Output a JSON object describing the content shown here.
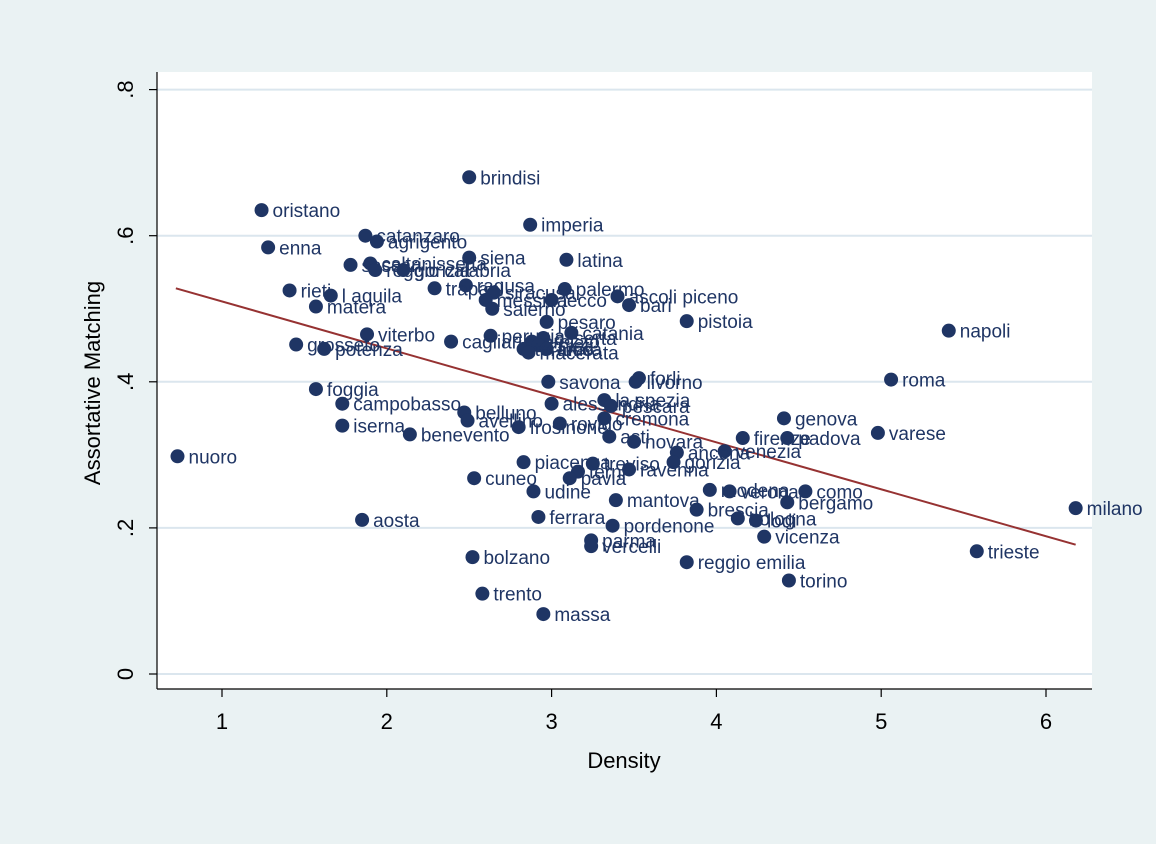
{
  "chart_data": {
    "type": "scatter",
    "title": "",
    "xlabel": "Density",
    "ylabel": "Assortative Matching",
    "xlim": [
      0.6,
      6.3
    ],
    "ylim": [
      -0.02,
      0.85
    ],
    "xticks": [
      1,
      2,
      3,
      4,
      5,
      6
    ],
    "xtick_labels": [
      "1",
      "2",
      "3",
      "4",
      "5",
      "6"
    ],
    "yticks": [
      0,
      0.2,
      0.4,
      0.6,
      0.8
    ],
    "ytick_labels": [
      "0",
      ".2",
      ".4",
      ".6",
      ".8"
    ],
    "grid": "horizontal",
    "colors": {
      "points": "#1f3564",
      "fit_line": "#963232",
      "background": "#eaf2f3",
      "plot_area": "#ffffff",
      "grid": "#dbe6ee"
    },
    "fit_line": {
      "x": [
        0.72,
        6.18
      ],
      "y": [
        0.528,
        0.177
      ]
    },
    "points": [
      {
        "label": "brindisi",
        "x": 2.5,
        "y": 0.68
      },
      {
        "label": "oristano",
        "x": 1.24,
        "y": 0.635
      },
      {
        "label": "imperia",
        "x": 2.87,
        "y": 0.615
      },
      {
        "label": "catanzaro",
        "x": 1.87,
        "y": 0.6
      },
      {
        "label": "agrigento",
        "x": 1.94,
        "y": 0.592
      },
      {
        "label": "enna",
        "x": 1.28,
        "y": 0.584
      },
      {
        "label": "latina",
        "x": 3.09,
        "y": 0.567
      },
      {
        "label": "caltanissetta",
        "x": 1.9,
        "y": 0.562
      },
      {
        "label": "siena",
        "x": 2.5,
        "y": 0.57
      },
      {
        "label": "sassari",
        "x": 1.78,
        "y": 0.56
      },
      {
        "label": "reggio calabria",
        "x": 1.93,
        "y": 0.553
      },
      {
        "label": "gorizia",
        "x": 2.1,
        "y": 0.553
      },
      {
        "label": "ragusa",
        "x": 2.48,
        "y": 0.532
      },
      {
        "label": "trapani",
        "x": 2.29,
        "y": 0.528
      },
      {
        "label": "rieti",
        "x": 1.41,
        "y": 0.525
      },
      {
        "label": "l aquila",
        "x": 1.66,
        "y": 0.518
      },
      {
        "label": "palermo",
        "x": 3.08,
        "y": 0.527
      },
      {
        "label": "siracusa",
        "x": 2.65,
        "y": 0.522
      },
      {
        "label": "messina",
        "x": 2.6,
        "y": 0.512
      },
      {
        "label": "lecco",
        "x": 3.0,
        "y": 0.512
      },
      {
        "label": "ascoli piceno",
        "x": 3.4,
        "y": 0.517
      },
      {
        "label": "bari",
        "x": 3.47,
        "y": 0.505
      },
      {
        "label": "matera",
        "x": 1.57,
        "y": 0.503
      },
      {
        "label": "salerno",
        "x": 2.64,
        "y": 0.5
      },
      {
        "label": "pistoia",
        "x": 3.82,
        "y": 0.483
      },
      {
        "label": "pesaro",
        "x": 2.97,
        "y": 0.482
      },
      {
        "label": "napoli",
        "x": 5.41,
        "y": 0.47
      },
      {
        "label": "catania",
        "x": 3.12,
        "y": 0.467
      },
      {
        "label": "viterbo",
        "x": 1.88,
        "y": 0.465
      },
      {
        "label": "perugia",
        "x": 2.63,
        "y": 0.463
      },
      {
        "label": "caserta",
        "x": 2.95,
        "y": 0.46
      },
      {
        "label": "arezzo",
        "x": 2.88,
        "y": 0.455
      },
      {
        "label": "cagliari",
        "x": 2.39,
        "y": 0.455
      },
      {
        "label": "chieti",
        "x": 2.92,
        "y": 0.45
      },
      {
        "label": "grosseto",
        "x": 1.45,
        "y": 0.451
      },
      {
        "label": "lucca",
        "x": 2.97,
        "y": 0.445
      },
      {
        "label": "potenza",
        "x": 1.62,
        "y": 0.445
      },
      {
        "label": "teramo",
        "x": 2.83,
        "y": 0.445
      },
      {
        "label": "macerata",
        "x": 2.86,
        "y": 0.44
      },
      {
        "label": "roma",
        "x": 5.06,
        "y": 0.403
      },
      {
        "label": "forli",
        "x": 3.53,
        "y": 0.405
      },
      {
        "label": "livorno",
        "x": 3.51,
        "y": 0.4
      },
      {
        "label": "savona",
        "x": 2.98,
        "y": 0.4
      },
      {
        "label": "foggia",
        "x": 1.57,
        "y": 0.39
      },
      {
        "label": "la spezia",
        "x": 3.32,
        "y": 0.375
      },
      {
        "label": "alessandria",
        "x": 3.0,
        "y": 0.37
      },
      {
        "label": "pescara",
        "x": 3.36,
        "y": 0.367
      },
      {
        "label": "campobasso",
        "x": 1.73,
        "y": 0.37
      },
      {
        "label": "belluno",
        "x": 2.47,
        "y": 0.358
      },
      {
        "label": "genova",
        "x": 4.41,
        "y": 0.35
      },
      {
        "label": "cremona",
        "x": 3.32,
        "y": 0.35
      },
      {
        "label": "avellino",
        "x": 2.49,
        "y": 0.347
      },
      {
        "label": "rovigo",
        "x": 3.05,
        "y": 0.343
      },
      {
        "label": "iserna",
        "x": 1.73,
        "y": 0.34
      },
      {
        "label": "frosinone",
        "x": 2.8,
        "y": 0.338
      },
      {
        "label": "varese",
        "x": 4.98,
        "y": 0.33
      },
      {
        "label": "benevento",
        "x": 2.14,
        "y": 0.328
      },
      {
        "label": "firenze",
        "x": 4.16,
        "y": 0.323
      },
      {
        "label": "padova",
        "x": 4.43,
        "y": 0.323
      },
      {
        "label": "asti",
        "x": 3.35,
        "y": 0.325
      },
      {
        "label": "novara",
        "x": 3.5,
        "y": 0.318
      },
      {
        "label": "venezia",
        "x": 4.05,
        "y": 0.305
      },
      {
        "label": "ancona",
        "x": 3.76,
        "y": 0.303
      },
      {
        "label": "nuoro",
        "x": 0.73,
        "y": 0.298
      },
      {
        "label": "piacenza",
        "x": 2.83,
        "y": 0.29
      },
      {
        "label": "gorizia",
        "x": 3.74,
        "y": 0.29
      },
      {
        "label": "treviso",
        "x": 3.25,
        "y": 0.288
      },
      {
        "label": "ravenna",
        "x": 3.47,
        "y": 0.28
      },
      {
        "label": "terni",
        "x": 3.16,
        "y": 0.277
      },
      {
        "label": "pavia",
        "x": 3.11,
        "y": 0.268
      },
      {
        "label": "cuneo",
        "x": 2.53,
        "y": 0.268
      },
      {
        "label": "verona",
        "x": 4.08,
        "y": 0.25
      },
      {
        "label": "modena",
        "x": 3.96,
        "y": 0.252
      },
      {
        "label": "como",
        "x": 4.54,
        "y": 0.25
      },
      {
        "label": "udine",
        "x": 2.89,
        "y": 0.25
      },
      {
        "label": "mantova",
        "x": 3.39,
        "y": 0.238
      },
      {
        "label": "bergamo",
        "x": 4.43,
        "y": 0.235
      },
      {
        "label": "brescia",
        "x": 3.88,
        "y": 0.225
      },
      {
        "label": "ferrara",
        "x": 2.92,
        "y": 0.215
      },
      {
        "label": "bologna",
        "x": 4.13,
        "y": 0.213
      },
      {
        "label": "lodi",
        "x": 4.24,
        "y": 0.21
      },
      {
        "label": "aosta",
        "x": 1.85,
        "y": 0.211
      },
      {
        "label": "pordenone",
        "x": 3.37,
        "y": 0.203
      },
      {
        "label": "vicenza",
        "x": 4.29,
        "y": 0.188
      },
      {
        "label": "parma",
        "x": 3.24,
        "y": 0.183
      },
      {
        "label": "vercelli",
        "x": 3.24,
        "y": 0.175
      },
      {
        "label": "trieste",
        "x": 5.58,
        "y": 0.168
      },
      {
        "label": "bolzano",
        "x": 2.52,
        "y": 0.16
      },
      {
        "label": "reggio emilia",
        "x": 3.82,
        "y": 0.153
      },
      {
        "label": "torino",
        "x": 4.44,
        "y": 0.128
      },
      {
        "label": "trento",
        "x": 2.58,
        "y": 0.11
      },
      {
        "label": "massa",
        "x": 2.95,
        "y": 0.082
      },
      {
        "label": "milano",
        "x": 6.18,
        "y": 0.227
      }
    ]
  }
}
